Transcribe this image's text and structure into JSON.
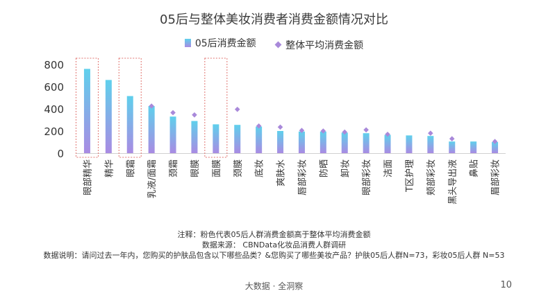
{
  "title": "05后与整体美妆消费者消费金额情况对比",
  "legend": {
    "series1": "05后消费金额",
    "series2": "整体平均消费金额"
  },
  "colors": {
    "bar_top": "#5fd0ec",
    "bar_bottom": "#a98be3",
    "marker": "#a989da",
    "highlight_box": "#e0736f"
  },
  "notes": {
    "line1": "注释：粉色代表05后人群消费金额高于整体平均消费金额",
    "line2": "数据来源： CBNData化妆品消费人群调研",
    "line3": "数据说明：请问过去一年内，您购买的护肤品包含以下哪些品类？&您购买了哪些美妆产品？护肤05后人群N=73，彩妆05后人群 N=53"
  },
  "footer": {
    "source": "大数据 · 全洞察",
    "page": "10"
  },
  "chart_data": {
    "type": "bar",
    "categories": [
      "眼部精华",
      "精华",
      "眼霜",
      "乳液/面霜",
      "颈霜",
      "眼膜",
      "面膜",
      "颈膜",
      "底妆",
      "爽肤水",
      "唇部彩妆",
      "防晒",
      "卸妆",
      "眼部彩妆",
      "洁面",
      "T区护理",
      "颊部彩妆",
      "黑头导出液",
      "鼻贴",
      "眉部彩妆"
    ],
    "series": [
      {
        "name": "05后消费金额",
        "type": "bar",
        "values": [
          760,
          660,
          515,
          425,
          330,
          290,
          260,
          255,
          240,
          200,
          195,
          195,
          185,
          180,
          165,
          160,
          155,
          105,
          105,
          100
        ]
      },
      {
        "name": "整体平均消费金额",
        "type": "marker",
        "values": [
          null,
          null,
          null,
          425,
          365,
          345,
          null,
          395,
          245,
          235,
          205,
          200,
          190,
          210,
          170,
          null,
          180,
          130,
          null,
          105
        ]
      }
    ],
    "highlighted": [
      "眼部精华",
      "眼霜",
      "面膜"
    ],
    "yticks": [
      0,
      200,
      400,
      600,
      800
    ],
    "ylim": [
      0,
      800
    ],
    "grid": false
  }
}
